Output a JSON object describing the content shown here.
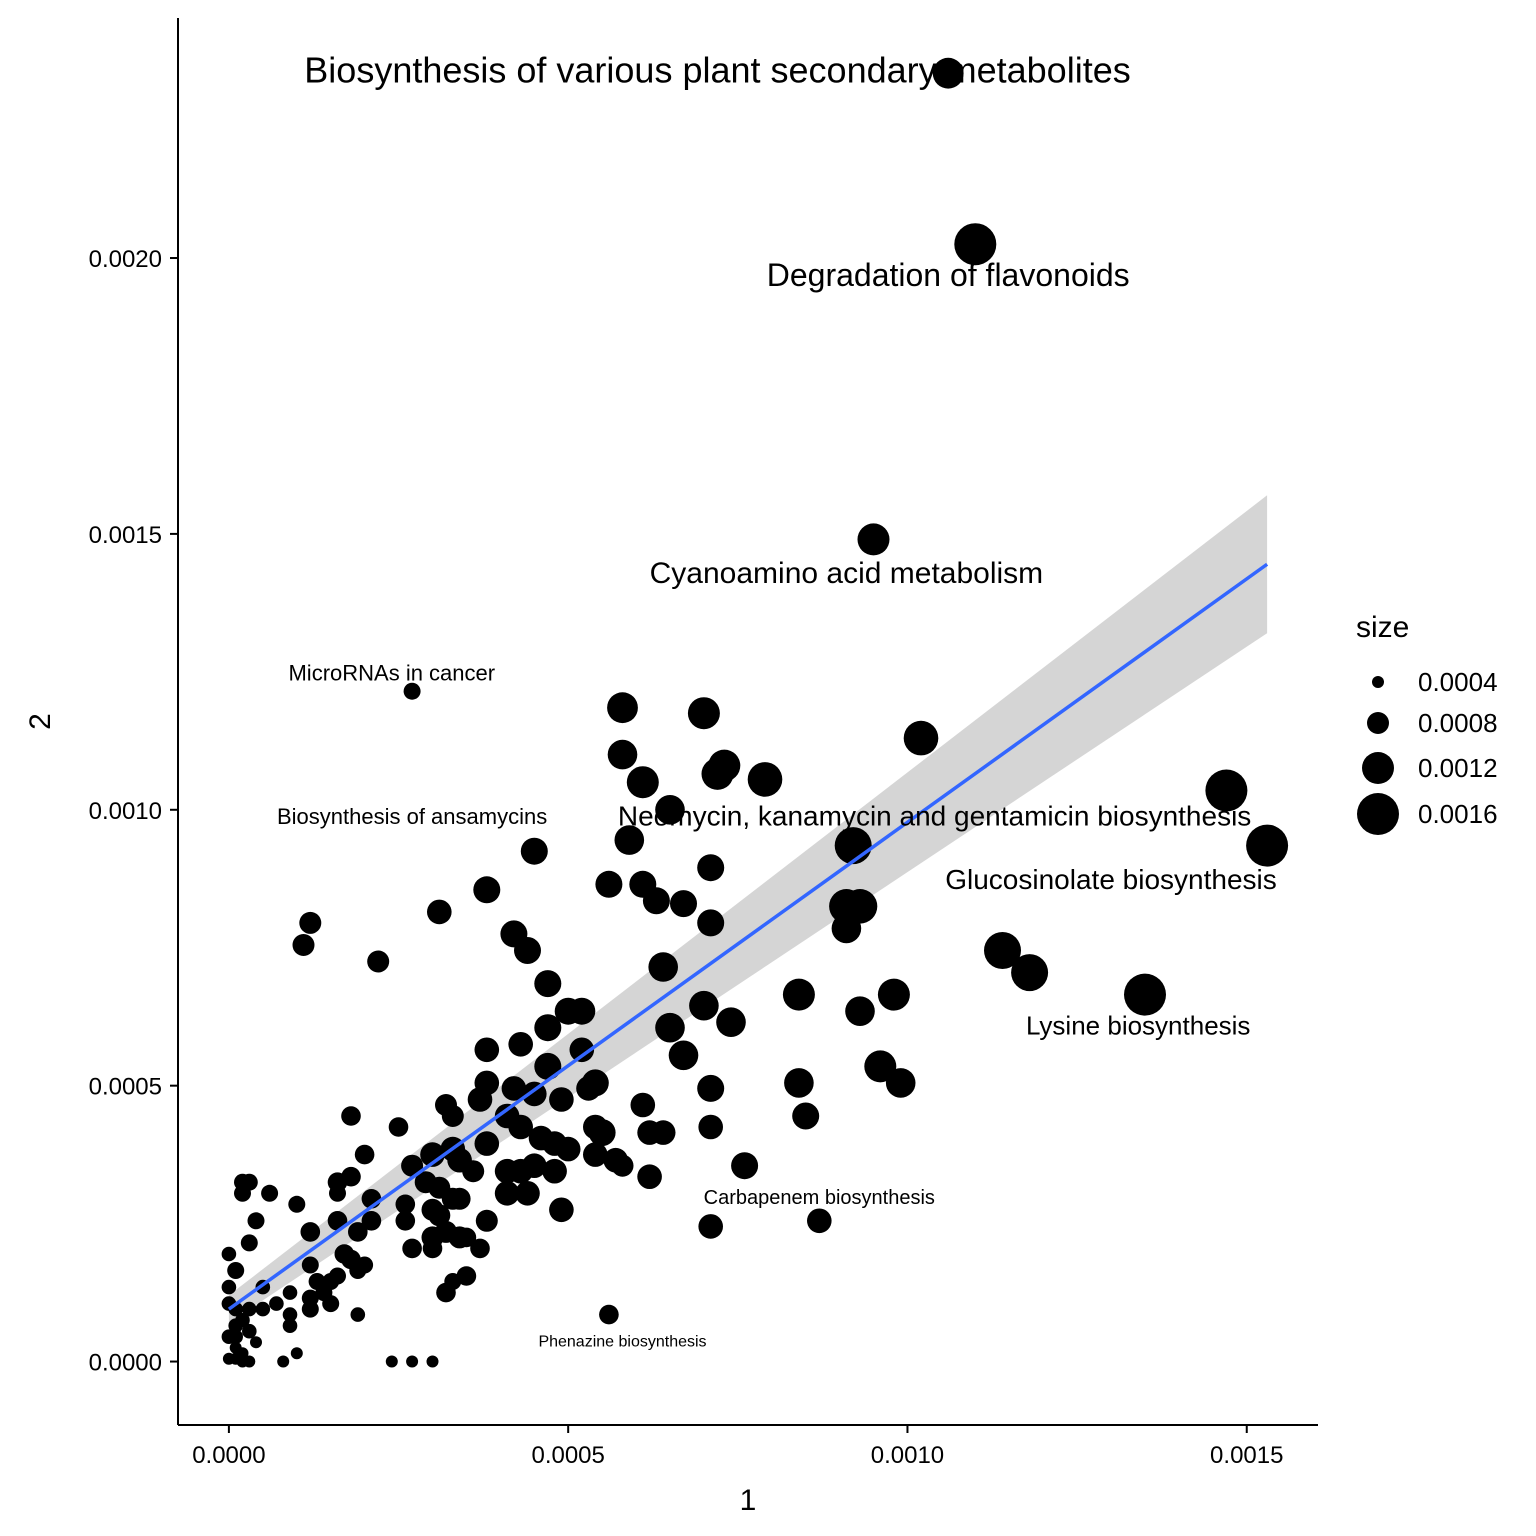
{
  "chart_data": {
    "type": "scatter",
    "title": "",
    "xlabel": "1",
    "ylabel": "2",
    "xlim": [
      -7.5e-05,
      0.001605
    ],
    "ylim": [
      -0.000115,
      0.002435
    ],
    "x_ticks": [
      0.0,
      0.0005,
      0.001,
      0.0015
    ],
    "x_tick_labels": [
      "0.0000",
      "0.0005",
      "0.0010",
      "0.0015"
    ],
    "y_ticks": [
      0.0,
      0.0005,
      0.001,
      0.0015,
      0.002
    ],
    "y_tick_labels": [
      "0.0000",
      "0.0005",
      "0.0010",
      "0.0015",
      "0.0020"
    ],
    "grid": false,
    "legend": {
      "title": "size",
      "position": "right",
      "entries": [
        {
          "value": 0.0004,
          "label": "0.0004"
        },
        {
          "value": 0.0008,
          "label": "0.0008"
        },
        {
          "value": 0.0012,
          "label": "0.0012"
        },
        {
          "value": 0.0016,
          "label": "0.0016"
        }
      ]
    },
    "trend_line": {
      "method": "linear",
      "color": "#3366FF",
      "ribbon_color": "#D3D3D3",
      "x_start": 0.0,
      "x_end": 0.00153,
      "y_start": 9.5e-05,
      "y_end": 0.001445,
      "band_start": [
        7e-05,
        0.00012
      ],
      "band_end": [
        0.00132,
        0.00157
      ]
    },
    "labels": [
      {
        "text": "Biosynthesis of various plant secondary metabolites",
        "x": 0.00072,
        "y": 0.002335,
        "size": 0.0016
      },
      {
        "text": "Degradation of flavonoids",
        "x": 0.00106,
        "y": 0.001965,
        "size": 0.0014
      },
      {
        "text": "Cyanoamino acid metabolism",
        "x": 0.00091,
        "y": 0.001425,
        "size": 0.0013
      },
      {
        "text": "MicroRNAs in cancer",
        "x": 0.00024,
        "y": 0.001245,
        "size": 0.0009
      },
      {
        "text": "Neomycin, kanamycin and gentamicin biosynthesis",
        "x": 0.00104,
        "y": 0.000985,
        "size": 0.0012
      },
      {
        "text": "Biosynthesis of ansamycins",
        "x": 0.00027,
        "y": 0.000985,
        "size": 0.0009
      },
      {
        "text": "Glucosinolate biosynthesis",
        "x": 0.0013,
        "y": 0.00087,
        "size": 0.0012
      },
      {
        "text": "Lysine biosynthesis",
        "x": 0.00134,
        "y": 0.000605,
        "size": 0.0011
      },
      {
        "text": "Carbapenem biosynthesis",
        "x": 0.00087,
        "y": 0.000295,
        "size": 0.0008
      },
      {
        "text": "Phenazine biosynthesis",
        "x": 0.00058,
        "y": 3.5e-05,
        "size": 0.0006
      }
    ],
    "points": [
      {
        "x": 0.00106,
        "y": 0.002335,
        "size": 0.00115
      },
      {
        "x": 0.0011,
        "y": 0.002025,
        "size": 0.0016
      },
      {
        "x": 0.00095,
        "y": 0.00149,
        "size": 0.0012
      },
      {
        "x": 0.00027,
        "y": 0.001215,
        "size": 0.0006
      },
      {
        "x": 0.00058,
        "y": 0.001185,
        "size": 0.00115
      },
      {
        "x": 0.0007,
        "y": 0.001175,
        "size": 0.0012
      },
      {
        "x": 0.00058,
        "y": 0.0011,
        "size": 0.0011
      },
      {
        "x": 0.00102,
        "y": 0.00113,
        "size": 0.0013
      },
      {
        "x": 0.00073,
        "y": 0.00108,
        "size": 0.0012
      },
      {
        "x": 0.00072,
        "y": 0.001065,
        "size": 0.0012
      },
      {
        "x": 0.00079,
        "y": 0.001055,
        "size": 0.0013
      },
      {
        "x": 0.00061,
        "y": 0.00105,
        "size": 0.0012
      },
      {
        "x": 0.00147,
        "y": 0.001035,
        "size": 0.0016
      },
      {
        "x": 0.00065,
        "y": 0.001,
        "size": 0.0011
      },
      {
        "x": 0.00153,
        "y": 0.000935,
        "size": 0.0016
      },
      {
        "x": 0.00092,
        "y": 0.000935,
        "size": 0.0014
      },
      {
        "x": 0.00059,
        "y": 0.000945,
        "size": 0.0011
      },
      {
        "x": 0.00045,
        "y": 0.000925,
        "size": 0.001
      },
      {
        "x": 0.00071,
        "y": 0.000895,
        "size": 0.001
      },
      {
        "x": 0.00056,
        "y": 0.000865,
        "size": 0.001
      },
      {
        "x": 0.00061,
        "y": 0.000865,
        "size": 0.001
      },
      {
        "x": 0.00038,
        "y": 0.000855,
        "size": 0.001
      },
      {
        "x": 0.00063,
        "y": 0.000835,
        "size": 0.001
      },
      {
        "x": 0.00067,
        "y": 0.00083,
        "size": 0.001
      },
      {
        "x": 0.00091,
        "y": 0.000825,
        "size": 0.0013
      },
      {
        "x": 0.00093,
        "y": 0.000825,
        "size": 0.0013
      },
      {
        "x": 0.00031,
        "y": 0.000815,
        "size": 0.0009
      },
      {
        "x": 0.00012,
        "y": 0.000795,
        "size": 0.0008
      },
      {
        "x": 0.00071,
        "y": 0.000795,
        "size": 0.001
      },
      {
        "x": 0.00091,
        "y": 0.000785,
        "size": 0.0011
      },
      {
        "x": 0.00042,
        "y": 0.000775,
        "size": 0.001
      },
      {
        "x": 0.00011,
        "y": 0.000755,
        "size": 0.0008
      },
      {
        "x": 0.00044,
        "y": 0.000745,
        "size": 0.001
      },
      {
        "x": 0.00114,
        "y": 0.000745,
        "size": 0.0014
      },
      {
        "x": 0.00022,
        "y": 0.000725,
        "size": 0.0008
      },
      {
        "x": 0.00064,
        "y": 0.000715,
        "size": 0.0011
      },
      {
        "x": 0.00118,
        "y": 0.000705,
        "size": 0.0014
      },
      {
        "x": 0.00047,
        "y": 0.000685,
        "size": 0.001
      },
      {
        "x": 0.00135,
        "y": 0.000665,
        "size": 0.0016
      },
      {
        "x": 0.00098,
        "y": 0.000665,
        "size": 0.0012
      },
      {
        "x": 0.00084,
        "y": 0.000665,
        "size": 0.0012
      },
      {
        "x": 0.0007,
        "y": 0.000645,
        "size": 0.0011
      },
      {
        "x": 0.0005,
        "y": 0.000635,
        "size": 0.001
      },
      {
        "x": 0.00052,
        "y": 0.000635,
        "size": 0.001
      },
      {
        "x": 0.00093,
        "y": 0.000635,
        "size": 0.0011
      },
      {
        "x": 0.00074,
        "y": 0.000615,
        "size": 0.0011
      },
      {
        "x": 0.00065,
        "y": 0.000605,
        "size": 0.0011
      },
      {
        "x": 0.00047,
        "y": 0.000605,
        "size": 0.001
      },
      {
        "x": 0.00038,
        "y": 0.000565,
        "size": 0.0009
      },
      {
        "x": 0.00043,
        "y": 0.000575,
        "size": 0.0009
      },
      {
        "x": 0.00052,
        "y": 0.000565,
        "size": 0.0009
      },
      {
        "x": 0.00067,
        "y": 0.000555,
        "size": 0.0011
      },
      {
        "x": 0.00096,
        "y": 0.000535,
        "size": 0.0012
      },
      {
        "x": 0.00047,
        "y": 0.000535,
        "size": 0.001
      },
      {
        "x": 0.00038,
        "y": 0.000505,
        "size": 0.0009
      },
      {
        "x": 0.00042,
        "y": 0.000495,
        "size": 0.0009
      },
      {
        "x": 0.00053,
        "y": 0.000495,
        "size": 0.0009
      },
      {
        "x": 0.00054,
        "y": 0.000505,
        "size": 0.001
      },
      {
        "x": 0.00099,
        "y": 0.000505,
        "size": 0.0011
      },
      {
        "x": 0.00084,
        "y": 0.000505,
        "size": 0.0011
      },
      {
        "x": 0.00071,
        "y": 0.000495,
        "size": 0.001
      },
      {
        "x": 0.00045,
        "y": 0.000485,
        "size": 0.0009
      },
      {
        "x": 0.00049,
        "y": 0.000475,
        "size": 0.0009
      },
      {
        "x": 0.00037,
        "y": 0.000475,
        "size": 0.0009
      },
      {
        "x": 0.00032,
        "y": 0.000465,
        "size": 0.0008
      },
      {
        "x": 0.00061,
        "y": 0.000465,
        "size": 0.0009
      },
      {
        "x": 0.00085,
        "y": 0.000445,
        "size": 0.001
      },
      {
        "x": 0.00018,
        "y": 0.000445,
        "size": 0.0007
      },
      {
        "x": 0.00033,
        "y": 0.000445,
        "size": 0.0008
      },
      {
        "x": 0.00041,
        "y": 0.000445,
        "size": 0.0009
      },
      {
        "x": 0.00043,
        "y": 0.000425,
        "size": 0.0009
      },
      {
        "x": 0.00054,
        "y": 0.000425,
        "size": 0.0009
      },
      {
        "x": 0.00071,
        "y": 0.000425,
        "size": 0.0009
      },
      {
        "x": 0.00025,
        "y": 0.000425,
        "size": 0.0007
      },
      {
        "x": 0.00055,
        "y": 0.000415,
        "size": 0.001
      },
      {
        "x": 0.00062,
        "y": 0.000415,
        "size": 0.0009
      },
      {
        "x": 0.00064,
        "y": 0.000415,
        "size": 0.0009
      },
      {
        "x": 0.00046,
        "y": 0.000405,
        "size": 0.0009
      },
      {
        "x": 0.00038,
        "y": 0.000395,
        "size": 0.0009
      },
      {
        "x": 0.00048,
        "y": 0.000395,
        "size": 0.0009
      },
      {
        "x": 0.0005,
        "y": 0.000385,
        "size": 0.0009
      },
      {
        "x": 0.00033,
        "y": 0.000385,
        "size": 0.0009
      },
      {
        "x": 0.0003,
        "y": 0.000375,
        "size": 0.0009
      },
      {
        "x": 0.0002,
        "y": 0.000375,
        "size": 0.0007
      },
      {
        "x": 0.00034,
        "y": 0.000365,
        "size": 0.0009
      },
      {
        "x": 0.00027,
        "y": 0.000355,
        "size": 0.0008
      },
      {
        "x": 0.00045,
        "y": 0.000355,
        "size": 0.0009
      },
      {
        "x": 0.00076,
        "y": 0.000355,
        "size": 0.001
      },
      {
        "x": 0.00054,
        "y": 0.000375,
        "size": 0.0009
      },
      {
        "x": 0.00057,
        "y": 0.000365,
        "size": 0.0009
      },
      {
        "x": 0.00036,
        "y": 0.000345,
        "size": 0.0008
      },
      {
        "x": 0.00041,
        "y": 0.000345,
        "size": 0.0009
      },
      {
        "x": 0.00043,
        "y": 0.000345,
        "size": 0.0009
      },
      {
        "x": 0.00048,
        "y": 0.000345,
        "size": 0.0009
      },
      {
        "x": 0.00062,
        "y": 0.000335,
        "size": 0.0009
      },
      {
        "x": 0.00058,
        "y": 0.000355,
        "size": 0.0008
      },
      {
        "x": 0.00018,
        "y": 0.000335,
        "size": 0.0007
      },
      {
        "x": 0.00016,
        "y": 0.000325,
        "size": 0.0007
      },
      {
        "x": 3e-05,
        "y": 0.000325,
        "size": 0.0006
      },
      {
        "x": 2e-05,
        "y": 0.000325,
        "size": 0.0006
      },
      {
        "x": 0.00029,
        "y": 0.000325,
        "size": 0.0008
      },
      {
        "x": 0.00031,
        "y": 0.000315,
        "size": 0.0008
      },
      {
        "x": 0.00041,
        "y": 0.000305,
        "size": 0.0009
      },
      {
        "x": 0.00044,
        "y": 0.000305,
        "size": 0.0009
      },
      {
        "x": 0.00016,
        "y": 0.000305,
        "size": 0.0006
      },
      {
        "x": 6e-05,
        "y": 0.000305,
        "size": 0.0006
      },
      {
        "x": 2e-05,
        "y": 0.000305,
        "size": 0.0006
      },
      {
        "x": 0.00033,
        "y": 0.000295,
        "size": 0.0008
      },
      {
        "x": 0.00034,
        "y": 0.000295,
        "size": 0.0008
      },
      {
        "x": 0.00021,
        "y": 0.000295,
        "size": 0.0007
      },
      {
        "x": 0.00026,
        "y": 0.000285,
        "size": 0.0007
      },
      {
        "x": 0.0001,
        "y": 0.000285,
        "size": 0.0006
      },
      {
        "x": 0.0003,
        "y": 0.000275,
        "size": 0.0008
      },
      {
        "x": 0.00049,
        "y": 0.000275,
        "size": 0.0009
      },
      {
        "x": 0.00031,
        "y": 0.000265,
        "size": 0.0008
      },
      {
        "x": 0.00087,
        "y": 0.000255,
        "size": 0.0009
      },
      {
        "x": 0.00038,
        "y": 0.000255,
        "size": 0.0008
      },
      {
        "x": 0.00026,
        "y": 0.000255,
        "size": 0.0007
      },
      {
        "x": 0.00021,
        "y": 0.000255,
        "size": 0.0007
      },
      {
        "x": 0.00016,
        "y": 0.000255,
        "size": 0.0007
      },
      {
        "x": 4e-05,
        "y": 0.000255,
        "size": 0.0006
      },
      {
        "x": 0.00071,
        "y": 0.000245,
        "size": 0.0009
      },
      {
        "x": 0.00032,
        "y": 0.000235,
        "size": 0.0008
      },
      {
        "x": 0.00012,
        "y": 0.000235,
        "size": 0.0007
      },
      {
        "x": 0.00019,
        "y": 0.000235,
        "size": 0.0007
      },
      {
        "x": 0.00034,
        "y": 0.000225,
        "size": 0.0008
      },
      {
        "x": 0.0003,
        "y": 0.000225,
        "size": 0.0008
      },
      {
        "x": 0.00035,
        "y": 0.000225,
        "size": 0.0007
      },
      {
        "x": 3e-05,
        "y": 0.000215,
        "size": 0.0006
      },
      {
        "x": 0.00027,
        "y": 0.000205,
        "size": 0.0007
      },
      {
        "x": 0.0003,
        "y": 0.000205,
        "size": 0.0007
      },
      {
        "x": 0.00037,
        "y": 0.000205,
        "size": 0.0007
      },
      {
        "x": 0.00017,
        "y": 0.000195,
        "size": 0.0007
      },
      {
        "x": 0.0,
        "y": 0.000195,
        "size": 0.0005
      },
      {
        "x": 0.00018,
        "y": 0.000185,
        "size": 0.0007
      },
      {
        "x": 0.0002,
        "y": 0.000175,
        "size": 0.0006
      },
      {
        "x": 0.00012,
        "y": 0.000175,
        "size": 0.0006
      },
      {
        "x": 0.00019,
        "y": 0.000165,
        "size": 0.0006
      },
      {
        "x": 1e-05,
        "y": 0.000165,
        "size": 0.0006
      },
      {
        "x": 0.00016,
        "y": 0.000155,
        "size": 0.0006
      },
      {
        "x": 0.00035,
        "y": 0.000155,
        "size": 0.0007
      },
      {
        "x": 0.00013,
        "y": 0.000145,
        "size": 0.0006
      },
      {
        "x": 0.00033,
        "y": 0.000145,
        "size": 0.0006
      },
      {
        "x": 0.00015,
        "y": 0.000145,
        "size": 0.0006
      },
      {
        "x": 5e-05,
        "y": 0.000135,
        "size": 0.0005
      },
      {
        "x": 0.0,
        "y": 0.000135,
        "size": 0.0005
      },
      {
        "x": 9e-05,
        "y": 0.000125,
        "size": 0.0005
      },
      {
        "x": 0.00014,
        "y": 0.000125,
        "size": 0.0006
      },
      {
        "x": 0.00032,
        "y": 0.000125,
        "size": 0.0007
      },
      {
        "x": 0.00012,
        "y": 0.000115,
        "size": 0.0006
      },
      {
        "x": 7e-05,
        "y": 0.000105,
        "size": 0.0005
      },
      {
        "x": 0.00015,
        "y": 0.000105,
        "size": 0.0006
      },
      {
        "x": 0.0,
        "y": 0.000105,
        "size": 0.0005
      },
      {
        "x": 0.00012,
        "y": 9.5e-05,
        "size": 0.0006
      },
      {
        "x": 1e-05,
        "y": 9.5e-05,
        "size": 0.0005
      },
      {
        "x": 3e-05,
        "y": 9.5e-05,
        "size": 0.0005
      },
      {
        "x": 5e-05,
        "y": 9.5e-05,
        "size": 0.0005
      },
      {
        "x": 9e-05,
        "y": 8.5e-05,
        "size": 0.0005
      },
      {
        "x": 0.00019,
        "y": 8.5e-05,
        "size": 0.0005
      },
      {
        "x": 0.00056,
        "y": 8.5e-05,
        "size": 0.0007
      },
      {
        "x": 2e-05,
        "y": 7.5e-05,
        "size": 0.0005
      },
      {
        "x": 1e-05,
        "y": 6.5e-05,
        "size": 0.0005
      },
      {
        "x": 9e-05,
        "y": 6.5e-05,
        "size": 0.0005
      },
      {
        "x": 3e-05,
        "y": 5.5e-05,
        "size": 0.0005
      },
      {
        "x": 1e-05,
        "y": 4.5e-05,
        "size": 0.0005
      },
      {
        "x": 0.0,
        "y": 4.5e-05,
        "size": 0.0005
      },
      {
        "x": 4e-05,
        "y": 3.5e-05,
        "size": 0.0004
      },
      {
        "x": 1e-05,
        "y": 2.5e-05,
        "size": 0.0004
      },
      {
        "x": 2e-05,
        "y": 1.5e-05,
        "size": 0.0004
      },
      {
        "x": 0.0001,
        "y": 1.5e-05,
        "size": 0.0004
      },
      {
        "x": 1e-05,
        "y": 5e-06,
        "size": 0.0004
      },
      {
        "x": 0.0,
        "y": 5e-06,
        "size": 0.0004
      },
      {
        "x": 2e-05,
        "y": 0.0,
        "size": 0.0004
      },
      {
        "x": 3e-05,
        "y": 0.0,
        "size": 0.0004
      },
      {
        "x": 8e-05,
        "y": 0.0,
        "size": 0.0004
      },
      {
        "x": 0.00024,
        "y": 0.0,
        "size": 0.0004
      },
      {
        "x": 0.00027,
        "y": 0.0,
        "size": 0.0004
      },
      {
        "x": 0.0003,
        "y": 0.0,
        "size": 0.0004
      }
    ]
  }
}
